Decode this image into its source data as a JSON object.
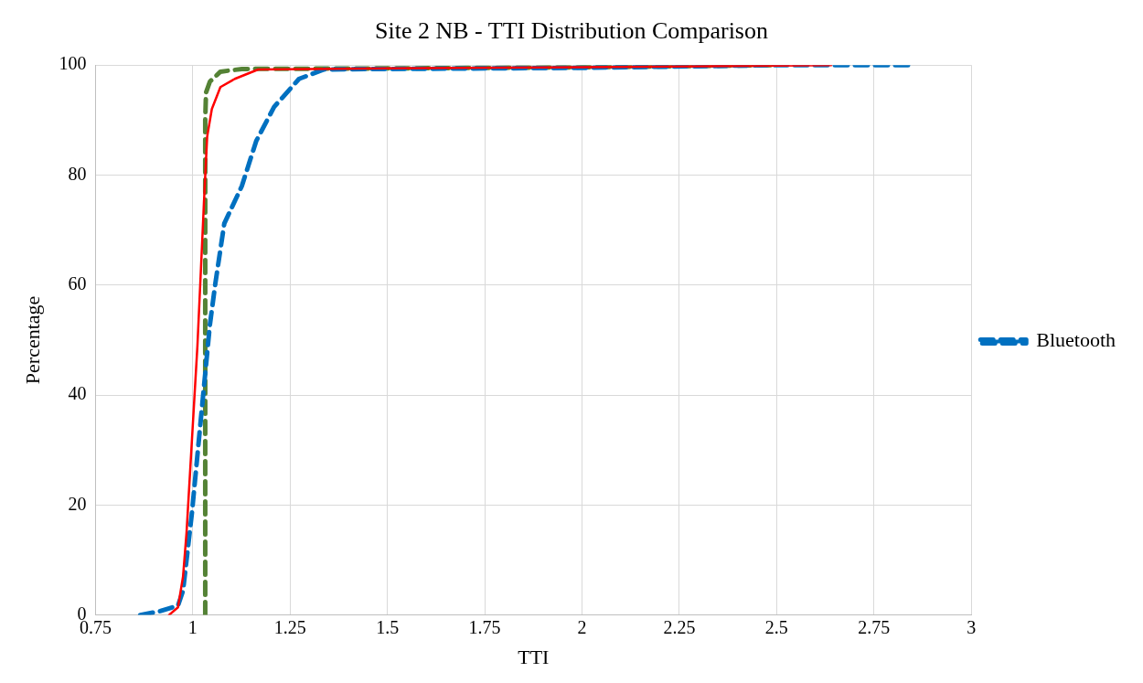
{
  "chart_data": {
    "type": "line",
    "title": "Site 2 NB - TTI Distribution Comparison",
    "xlabel": "TTI",
    "ylabel": "Percentage",
    "xlim": [
      0.75,
      3
    ],
    "xticks": [
      0.75,
      1,
      1.25,
      1.5,
      1.75,
      2,
      2.25,
      2.5,
      2.75,
      3
    ],
    "ylim": [
      0,
      100
    ],
    "yticks": [
      0,
      20,
      40,
      60,
      80,
      100
    ],
    "grid": true,
    "legend": "right",
    "marker": "none",
    "series": [
      {
        "color": "#ff0000",
        "line_style": "solid",
        "x": [
          0.939,
          0.962,
          0.975,
          0.984,
          0.998,
          1.012,
          1.021,
          1.03,
          1.037,
          1.049,
          1.071,
          1.108,
          1.168,
          1.5,
          2,
          2.3,
          2.64
        ],
        "values": [
          0,
          1.4,
          7,
          15,
          32,
          49,
          63,
          77,
          87,
          92,
          96,
          97.5,
          99.2,
          99.4,
          99.6,
          99.8,
          100
        ]
      },
      {
        "name": "Bluetooth",
        "color": "#0070c0",
        "line_style": "dashed",
        "x": [
          0.865,
          0.916,
          0.962,
          0.975,
          0.998,
          1.021,
          1.044,
          1.058,
          1.081,
          1.126,
          1.163,
          1.209,
          1.273,
          1.337,
          1.5,
          2,
          2.5,
          2.85
        ],
        "values": [
          0,
          0.7,
          1.7,
          4.4,
          18.7,
          35.8,
          52.8,
          60.3,
          71.2,
          78,
          86.2,
          92.4,
          97.5,
          99.2,
          99.3,
          99.5,
          100,
          100
        ]
      },
      {
        "color": "#548235",
        "line_style": "dashed",
        "x": [
          1.032,
          1.032,
          1.034,
          1.044,
          1.071,
          1.126,
          1.5,
          2,
          2.5
        ],
        "values": [
          0,
          90,
          95,
          97,
          98.8,
          99.3,
          99.4,
          99.6,
          100
        ]
      }
    ]
  }
}
